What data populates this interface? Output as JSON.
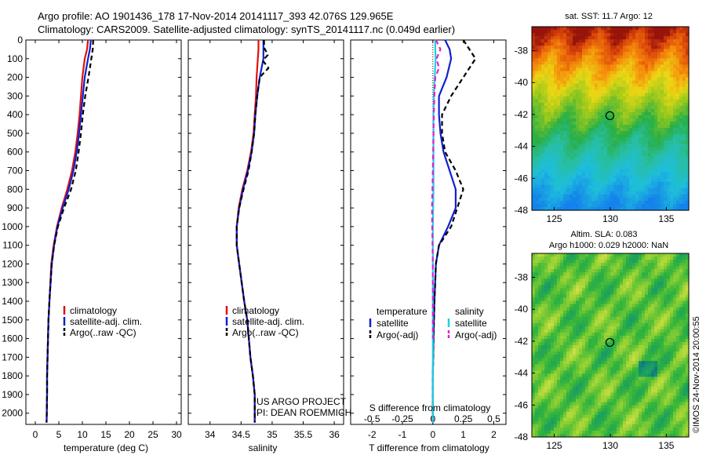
{
  "header": {
    "line1": "Argo profile: AO 1901436_178 17-Nov-2014 20141117_393 42.076S 129.965E",
    "line2": "Climatology: CARS2009. Satellite-adjusted climatology: synTS_20141117.nc (0.049d earlier)"
  },
  "footer_vertical": "©IMOS 24-Nov-2014 20:00:55",
  "colors": {
    "climatology": "#e01010",
    "satellite": "#1020d0",
    "argo": "#000000",
    "satellite_salinity": "#20d0e0",
    "argo_salinity": "#e020d0"
  },
  "chart_data": [
    {
      "type": "line",
      "panel": "temperature",
      "xlabel": "temperature (deg C)",
      "xticks": [
        "0",
        "5",
        "10",
        "15",
        "20",
        "25",
        "30"
      ],
      "xlim": [
        -2,
        31
      ],
      "ylim": [
        0,
        2060
      ],
      "yticks": [
        "0",
        "100",
        "200",
        "300",
        "400",
        "500",
        "600",
        "700",
        "800",
        "900",
        "1000",
        "1100",
        "1200",
        "1300",
        "1400",
        "1500",
        "1600",
        "1700",
        "1800",
        "1900",
        "2000"
      ],
      "legend": [
        "climatology",
        "satellite-adj. clim.",
        "Argo(..raw -QC)"
      ],
      "series": [
        {
          "name": "climatology",
          "style": "solid",
          "color": "#e01010",
          "x": [
            11.2,
            11.0,
            10.5,
            10.0,
            9.7,
            9.4,
            9.0,
            8.5,
            7.8,
            6.8,
            5.6,
            4.6,
            3.9,
            3.4,
            3.0,
            2.8,
            2.6,
            2.5,
            2.5,
            2.4
          ],
          "y": [
            0,
            50,
            100,
            200,
            300,
            400,
            500,
            600,
            700,
            800,
            900,
            1000,
            1100,
            1200,
            1400,
            1500,
            1700,
            1800,
            1900,
            2050
          ]
        },
        {
          "name": "satellite-adj. clim.",
          "style": "solid",
          "color": "#1020d0",
          "x": [
            11.8,
            11.6,
            11.2,
            10.5,
            10.1,
            9.7,
            9.3,
            8.8,
            8.1,
            7.1,
            5.8,
            4.7,
            4.0,
            3.5,
            3.0,
            2.8,
            2.6,
            2.5,
            2.5,
            2.4
          ],
          "y": [
            0,
            50,
            100,
            200,
            300,
            400,
            500,
            600,
            700,
            800,
            900,
            1000,
            1100,
            1200,
            1400,
            1500,
            1700,
            1800,
            1900,
            2050
          ]
        },
        {
          "name": "Argo(..raw -QC)",
          "style": "dashed",
          "color": "#000000",
          "x": [
            12.3,
            12.2,
            11.9,
            11.3,
            10.6,
            10.1,
            9.7,
            9.2,
            8.6,
            7.6,
            6.1,
            4.8,
            4.0,
            3.5,
            3.0,
            2.8,
            2.6,
            2.5,
            2.5,
            2.4
          ],
          "y": [
            0,
            50,
            100,
            200,
            300,
            400,
            500,
            600,
            700,
            800,
            900,
            1000,
            1100,
            1200,
            1400,
            1500,
            1700,
            1800,
            1900,
            2050
          ]
        }
      ]
    },
    {
      "type": "line",
      "panel": "salinity",
      "xlabel": "salinity",
      "xticks": [
        "34",
        "34.5",
        "35",
        "35.5",
        "36"
      ],
      "xlim": [
        33.65,
        36.15
      ],
      "ylim": [
        0,
        2060
      ],
      "legend": [
        "climatology",
        "satellite-adj. clim.",
        "Argo(..raw -QC)"
      ],
      "annotation": [
        "US ARGO PROJECT",
        "PI: DEAN ROEMMICH"
      ],
      "series": [
        {
          "name": "climatology",
          "style": "solid",
          "color": "#e01010",
          "x": [
            34.78,
            34.78,
            34.77,
            34.75,
            34.74,
            34.72,
            34.7,
            34.66,
            34.6,
            34.52,
            34.46,
            34.43,
            34.43,
            34.47,
            34.55,
            34.6,
            34.65,
            34.69,
            34.72,
            34.72
          ],
          "y": [
            0,
            50,
            100,
            200,
            300,
            400,
            500,
            600,
            700,
            800,
            900,
            1000,
            1100,
            1200,
            1400,
            1500,
            1700,
            1800,
            1900,
            2050
          ]
        },
        {
          "name": "satellite-adj. clim.",
          "style": "solid",
          "color": "#1020d0",
          "x": [
            34.86,
            34.86,
            34.86,
            34.8,
            34.76,
            34.73,
            34.71,
            34.67,
            34.61,
            34.53,
            34.47,
            34.43,
            34.43,
            34.47,
            34.55,
            34.6,
            34.65,
            34.69,
            34.72,
            34.72
          ],
          "y": [
            0,
            50,
            100,
            200,
            300,
            400,
            500,
            600,
            700,
            800,
            900,
            1000,
            1100,
            1200,
            1400,
            1500,
            1700,
            1800,
            1900,
            2050
          ]
        },
        {
          "name": "Argo(..raw -QC)",
          "style": "dashed",
          "color": "#000000",
          "x": [
            34.87,
            34.87,
            34.93,
            34.85,
            34.94,
            34.8,
            34.76,
            34.73,
            34.71,
            34.67,
            34.62,
            34.54,
            34.47,
            34.43,
            34.43,
            34.47,
            34.55,
            34.6,
            34.65,
            34.69,
            34.72,
            34.72
          ],
          "y": [
            0,
            40,
            80,
            110,
            150,
            200,
            300,
            400,
            500,
            600,
            700,
            800,
            900,
            1000,
            1100,
            1200,
            1400,
            1500,
            1700,
            1800,
            1900,
            2050
          ]
        }
      ]
    },
    {
      "type": "line",
      "panel": "difference",
      "xlabel": "T difference from climatology",
      "xticks": [
        "-2",
        "-1",
        "0",
        "1",
        "2"
      ],
      "xlim": [
        -2.7,
        2.4
      ],
      "top_xlabel": "S difference from climatology",
      "top_xticks": [
        "-0.5",
        "-0.25",
        "0",
        "0.25",
        "0.5"
      ],
      "top_xlim": [
        -0.675,
        0.6
      ],
      "ylim": [
        0,
        2060
      ],
      "legend_headers": [
        "temperature",
        "salinity"
      ],
      "legend": [
        "satellite",
        "Argo(-adj)",
        "satellite",
        "Argo(-adj)"
      ],
      "series": [
        {
          "name": "temperature satellite",
          "style": "solid",
          "color": "#1020d0",
          "x": [
            0.4,
            0.55,
            0.6,
            0.45,
            0.2,
            0.2,
            0.25,
            0.35,
            0.55,
            0.75,
            0.75,
            0.5,
            0.2,
            0.1,
            0.05,
            0.02,
            0.0,
            0.0,
            0.0
          ],
          "y": [
            0,
            50,
            100,
            200,
            300,
            400,
            500,
            600,
            700,
            800,
            900,
            1000,
            1100,
            1200,
            1400,
            1600,
            1800,
            1900,
            2050
          ]
        },
        {
          "name": "temperature Argo(-adj)",
          "style": "dashed",
          "color": "#000000",
          "x": [
            1.0,
            1.2,
            1.4,
            1.0,
            0.6,
            0.3,
            0.3,
            0.4,
            0.75,
            1.0,
            0.8,
            0.6,
            0.2,
            0.1,
            0.05,
            0.02,
            0.0,
            0.0,
            0.0
          ],
          "y": [
            0,
            50,
            100,
            200,
            300,
            400,
            500,
            600,
            700,
            800,
            900,
            1000,
            1100,
            1200,
            1400,
            1600,
            1800,
            1900,
            2050
          ]
        },
        {
          "name": "salinity satellite",
          "style": "solid",
          "color": "#20d0e0",
          "x": [
            0.08,
            0.08,
            0.09,
            0.06,
            0.03,
            0.02,
            0.02,
            0.02,
            0.02,
            0.02,
            0.01,
            0.0,
            0.0,
            0.0,
            0.0,
            0.0,
            0.0,
            0.0
          ],
          "y": [
            0,
            50,
            100,
            200,
            300,
            400,
            500,
            600,
            700,
            800,
            900,
            1000,
            1100,
            1200,
            1400,
            1600,
            1800,
            2050
          ]
        },
        {
          "name": "salinity Argo(-adj)",
          "style": "dashed",
          "color": "#e020d0",
          "x": [
            0.1,
            0.25,
            0.12,
            0.2,
            0.08,
            0.05,
            0.03,
            0.02,
            0.0,
            -0.03,
            -0.02,
            0.0,
            0.0,
            0.0
          ],
          "y": [
            0,
            50,
            100,
            150,
            200,
            300,
            400,
            500,
            700,
            900,
            1000,
            1200,
            1400,
            1600
          ]
        }
      ]
    },
    {
      "type": "heatmap",
      "panel": "sst_map",
      "title": "sat. SST: 11.7 Argo: 12",
      "xticks": [
        "125",
        "130",
        "135"
      ],
      "yticks": [
        "-38",
        "-40",
        "-42",
        "-44",
        "-46",
        "-48"
      ],
      "xlim": [
        123,
        137
      ],
      "ylim": [
        -48,
        -36.5
      ],
      "marker": {
        "lon": 129.965,
        "lat": -42.076
      }
    },
    {
      "type": "heatmap",
      "panel": "sla_map",
      "title": "Altim. SLA: 0.083",
      "subtitle": "Argo h1000: 0.029 h2000: NaN",
      "xticks": [
        "125",
        "130",
        "135"
      ],
      "yticks": [
        "-38",
        "-40",
        "-42",
        "-44",
        "-46",
        "-48"
      ],
      "xlim": [
        123,
        137
      ],
      "ylim": [
        -48,
        -36.5
      ],
      "marker": {
        "lon": 129.965,
        "lat": -42.076
      }
    }
  ]
}
